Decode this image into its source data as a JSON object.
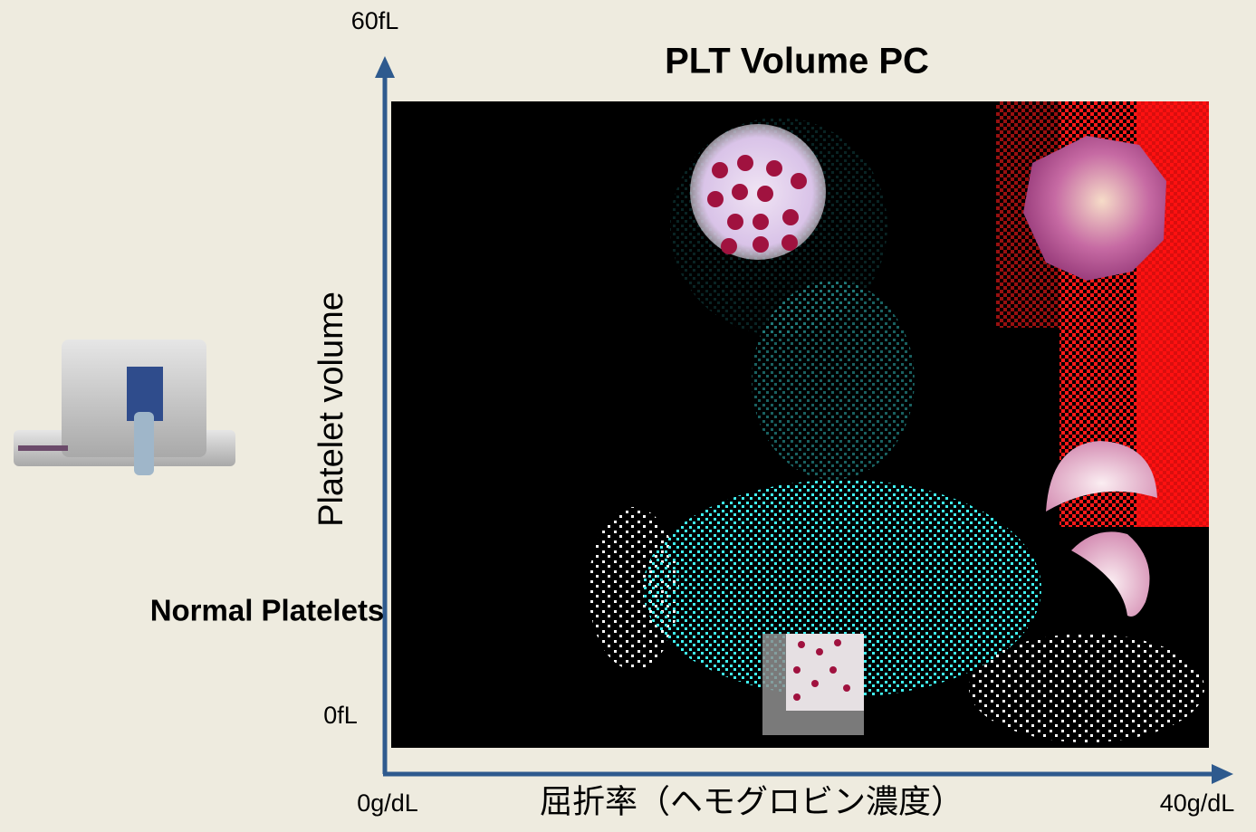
{
  "slide": {
    "title": "PLT Volume PC",
    "side_label": "Normal Platelets",
    "y_axis": {
      "label": "Platelet volume",
      "top": "60fL",
      "bottom": "0fL"
    },
    "x_axis": {
      "label": "屈折率（ヘモグロビン濃度）",
      "left": "0g/dL",
      "right": "40g/dL"
    }
  }
}
